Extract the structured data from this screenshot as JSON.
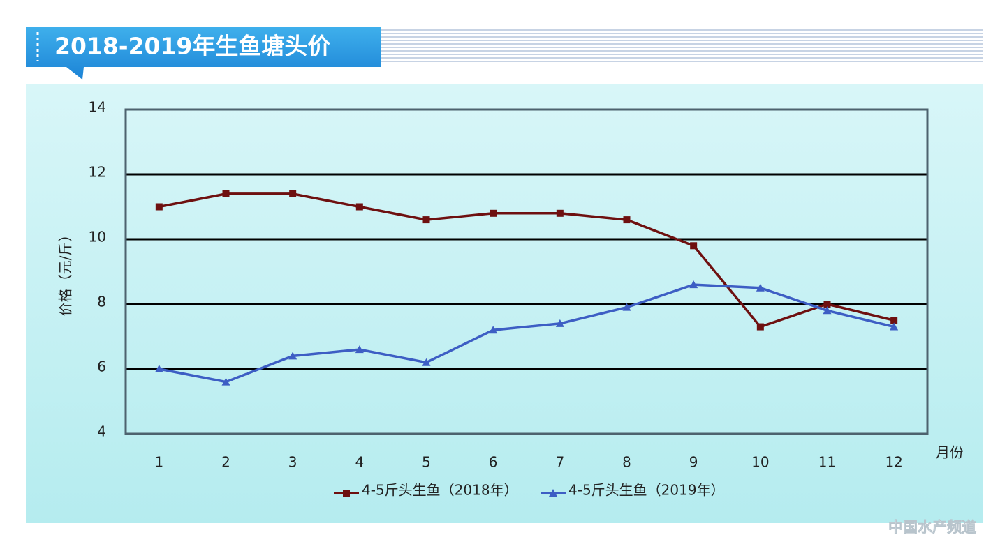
{
  "chart_data": {
    "type": "line",
    "title": "2018-2019年生鱼塘头价",
    "y_label": "价格（元/斤）",
    "x_label": "月份",
    "watermark": "中国水产频道",
    "categories": [
      "1",
      "2",
      "3",
      "4",
      "5",
      "6",
      "7",
      "8",
      "9",
      "10",
      "11",
      "12"
    ],
    "series": [
      {
        "name": "4-5斤头生鱼（2018年）",
        "color": "#6e1010",
        "marker": "square",
        "values": [
          11,
          11.4,
          11.4,
          11,
          10.6,
          10.8,
          10.8,
          10.6,
          9.8,
          7.3,
          8,
          7.5
        ]
      },
      {
        "name": "4-5斤头生鱼（2019年）",
        "color": "#3d5ec4",
        "marker": "triangle",
        "values": [
          6,
          5.6,
          6.4,
          6.6,
          6.2,
          7.2,
          7.4,
          7.9,
          8.6,
          8.5,
          7.8,
          7.3
        ]
      }
    ],
    "ylim": [
      4,
      14
    ],
    "yticks": [
      4,
      6,
      8,
      10,
      12,
      14
    ],
    "grid": true
  }
}
